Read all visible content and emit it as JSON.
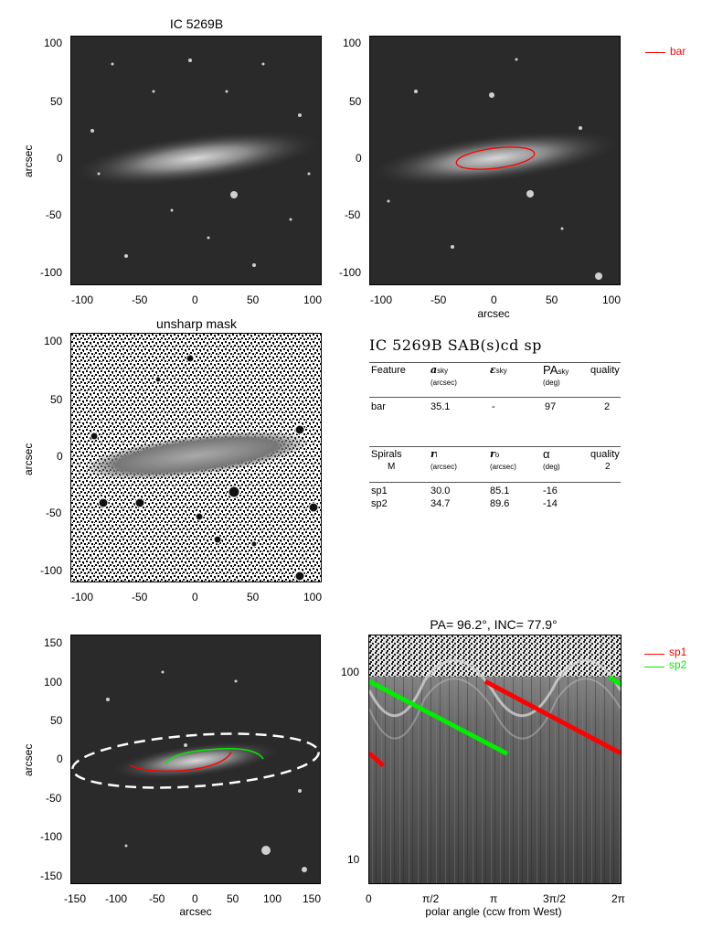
{
  "panels": {
    "top_left": {
      "title": "IC 5269B",
      "ylabel": "arcsec",
      "y_ticks": [
        "100",
        "50",
        "0",
        "-50",
        "-100"
      ],
      "x_ticks": [
        "-100",
        "-50",
        "0",
        "50",
        "100"
      ]
    },
    "top_right": {
      "xlabel": "arcsec",
      "y_ticks": [
        "100",
        "50",
        "0",
        "-50",
        "-100"
      ],
      "x_ticks": [
        "-100",
        "-50",
        "0",
        "50",
        "100"
      ],
      "legend": [
        {
          "label": "bar",
          "color": "#ff0000"
        }
      ]
    },
    "mid_left": {
      "title": "unsharp mask",
      "ylabel": "arcsec",
      "y_ticks": [
        "100",
        "50",
        "0",
        "-50",
        "-100"
      ],
      "x_ticks": [
        "-100",
        "-50",
        "0",
        "50",
        "100"
      ]
    },
    "bottom_left": {
      "ylabel": "arcsec",
      "xlabel": "arcsec",
      "y_ticks": [
        "150",
        "100",
        "50",
        "0",
        "-50",
        "-100",
        "-150"
      ],
      "x_ticks": [
        "-150",
        "-100",
        "-50",
        "0",
        "50",
        "100",
        "150"
      ]
    },
    "bottom_right": {
      "title": "PA=  96.2°, INC=  77.9°",
      "xlabel": "polar angle (ccw from West)",
      "y_ticks": [
        "100",
        "10"
      ],
      "x_ticks": [
        "0",
        "π/2",
        "π",
        "3π/2",
        "2π"
      ],
      "legend": [
        {
          "label": "sp1",
          "color": "#ff0000"
        },
        {
          "label": "sp2",
          "color": "#00ee00"
        }
      ]
    }
  },
  "table": {
    "title": "IC 5269B  SAB(s)cd sp",
    "bar_header": {
      "feature": "Feature",
      "a": "a",
      "a_sub": "sky",
      "a_unit": "(arcsec)",
      "eps": "ε",
      "eps_sub": "sky",
      "pa": "PA",
      "pa_sub": "sky",
      "pa_unit": "(deg)",
      "quality": "quality"
    },
    "bar_row": {
      "feature": "bar",
      "a": "35.1",
      "eps": "-",
      "pa": "97",
      "quality": "2"
    },
    "spiral_header": {
      "spirals": "Spirals",
      "m": "M",
      "ri": "r",
      "ri_sub": "i",
      "ri_unit": "(arcsec)",
      "ro": "r",
      "ro_sub": "o",
      "ro_unit": "(arcsec)",
      "alpha": "α",
      "alpha_unit": "(deg)",
      "quality": "quality",
      "quality_val": "2"
    },
    "spiral_rows": [
      {
        "name": "sp1",
        "ri": "30.0",
        "ro": "85.1",
        "alpha": "-16"
      },
      {
        "name": "sp2",
        "ri": "34.7",
        "ro": "89.6",
        "alpha": "-14"
      }
    ]
  },
  "chart_data": [
    {
      "type": "image",
      "title": "IC 5269B",
      "ylabel": "arcsec",
      "xlim": [
        -110,
        110
      ],
      "ylim": [
        -110,
        110
      ]
    },
    {
      "type": "image",
      "xlabel": "arcsec",
      "xlim": [
        -110,
        110
      ],
      "ylim": [
        -110,
        110
      ],
      "overlays": [
        {
          "name": "bar",
          "shape": "ellipse",
          "color": "#ff0000",
          "semi_major": 35.1,
          "pa_deg": 97
        }
      ]
    },
    {
      "type": "image",
      "title": "unsharp mask",
      "ylabel": "arcsec",
      "xlim": [
        -110,
        110
      ],
      "ylim": [
        -110,
        110
      ]
    },
    {
      "type": "image",
      "xlabel": "arcsec",
      "ylabel": "arcsec",
      "xlim": [
        -160,
        160
      ],
      "ylim": [
        -160,
        160
      ]
    },
    {
      "type": "line",
      "title": "PA=  96.2°, INC=  77.9°",
      "xlabel": "polar angle (ccw from West)",
      "x_range": [
        0,
        6.283
      ],
      "y_scale": "log",
      "y_range": [
        7,
        150
      ],
      "series": [
        {
          "name": "sp1",
          "segments": [
            [
              [
                0,
                35
              ],
              [
                0.35,
                30
              ]
            ],
            [
              [
                2.9,
                85
              ],
              [
                6.283,
                35
              ]
            ]
          ]
        },
        {
          "name": "sp2",
          "segments": [
            [
              [
                0,
                85
              ],
              [
                3.45,
                34.7
              ]
            ],
            [
              [
                6.0,
                89.6
              ],
              [
                6.283,
                82
              ]
            ]
          ]
        }
      ]
    }
  ]
}
